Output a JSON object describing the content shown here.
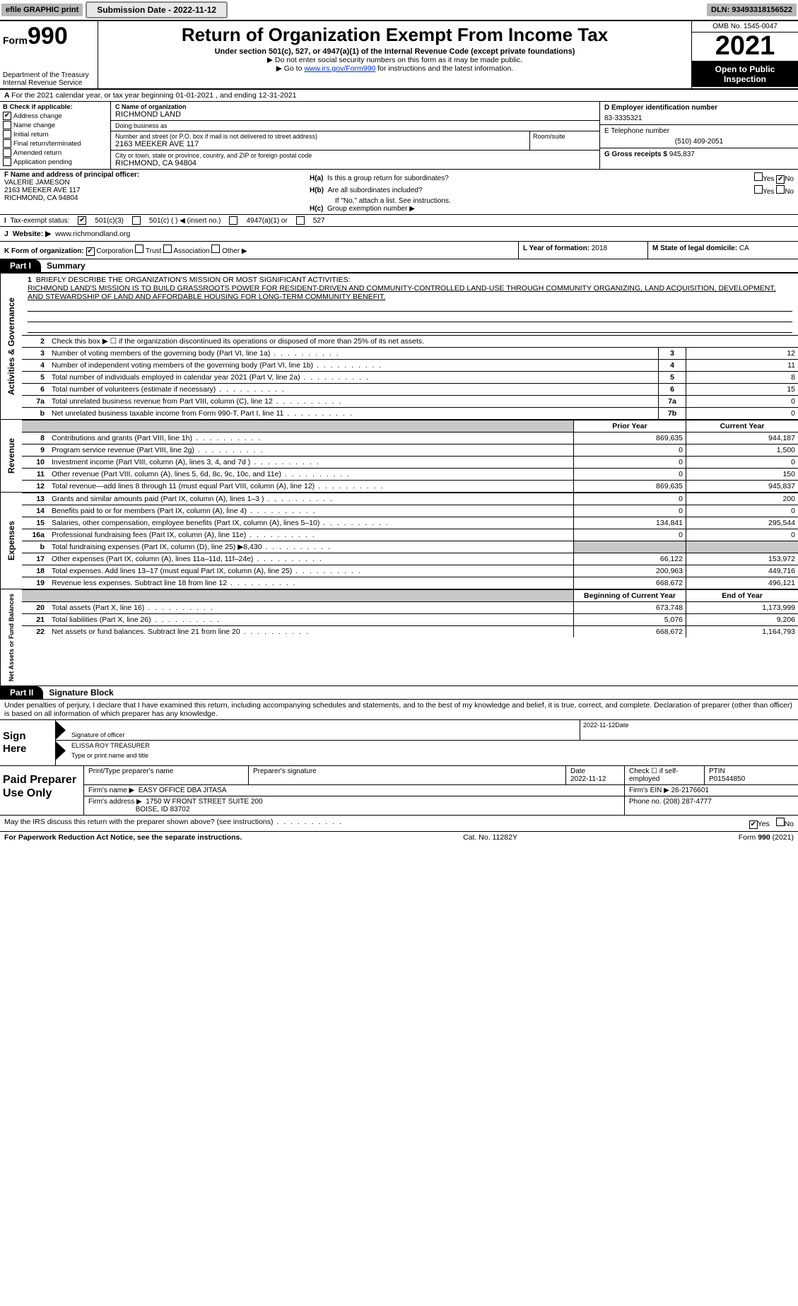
{
  "topbar": {
    "efile_label": "efile GRAPHIC print",
    "submission_label": "Submission Date - 2022-11-12",
    "dln": "DLN: 93493318156522"
  },
  "header": {
    "form_prefix": "Form",
    "form_number": "990",
    "title": "Return of Organization Exempt From Income Tax",
    "subtitle": "Under section 501(c), 527, or 4947(a)(1) of the Internal Revenue Code (except private foundations)",
    "note1": "▶ Do not enter social security numbers on this form as it may be made public.",
    "note2_pre": "▶ Go to ",
    "note2_link": "www.irs.gov/Form990",
    "note2_post": " for instructions and the latest information.",
    "dept": "Department of the Treasury",
    "irs": "Internal Revenue Service",
    "omb": "OMB No. 1545-0047",
    "year": "2021",
    "inspect": "Open to Public Inspection"
  },
  "A": {
    "text": "For the 2021 calendar year, or tax year beginning 01-01-2021     , and ending 12-31-2021"
  },
  "B": {
    "label": "B Check if applicable:",
    "items": [
      "Address change",
      "Name change",
      "Initial return",
      "Final return/terminated",
      "Amended return",
      "Application pending"
    ],
    "checked": [
      true,
      false,
      false,
      false,
      false,
      false
    ]
  },
  "C": {
    "name_label": "C Name of organization",
    "name": "RICHMOND LAND",
    "dba_label": "Doing business as",
    "dba": "",
    "street_label": "Number and street (or P.O. box if mail is not delivered to street address)",
    "street": "2163 MEEKER AVE 117",
    "room_label": "Room/suite",
    "city_label": "City or town, state or province, country, and ZIP or foreign postal code",
    "city": "RICHMOND, CA  94804"
  },
  "D": {
    "label": "D Employer identification number",
    "value": "83-3335321"
  },
  "E": {
    "label": "E Telephone number",
    "value": "(510) 409-2051"
  },
  "G": {
    "label": "G Gross receipts $",
    "value": "945,837"
  },
  "F": {
    "label": "F  Name and address of principal officer:",
    "name": "VALERIE JAMESON",
    "addr1": "2163 MEEKER AVE 117",
    "addr2": "RICHMOND, CA  94804"
  },
  "H": {
    "a": "Is this a group return for subordinates?",
    "b": "Are all subordinates included?",
    "note": "If \"No,\" attach a list. See instructions.",
    "c": "Group exemption number ▶",
    "yes": "Yes",
    "no": "No"
  },
  "I": {
    "label": "Tax-exempt status:",
    "opts": [
      "501(c)(3)",
      "501(c) (    ) ◀ (insert no.)",
      "4947(a)(1) or",
      "527"
    ]
  },
  "J": {
    "label": "Website: ▶",
    "value": "www.richmondland.org"
  },
  "K": {
    "label": "K Form of organization:",
    "opts": [
      "Corporation",
      "Trust",
      "Association",
      "Other ▶"
    ]
  },
  "L": {
    "label": "L Year of formation:",
    "value": "2018"
  },
  "M": {
    "label": "M State of legal domicile:",
    "value": "CA"
  },
  "partI": {
    "tab": "Part I",
    "title": "Summary"
  },
  "mission": {
    "num": "1",
    "label": "Briefly describe the organization's mission or most significant activities:",
    "text": "RICHMOND LAND'S MISSION IS TO BUILD GRASSROOTS POWER FOR RESIDENT-DRIVEN AND COMMUNITY-CONTROLLED LAND-USE THROUGH COMMUNITY ORGANIZING, LAND ACQUISITION, DEVELOPMENT, AND STEWARDSHIP OF LAND AND AFFORDABLE HOUSING FOR LONG-TERM COMMUNITY BENEFIT."
  },
  "gov_rows": [
    {
      "n": "2",
      "t": "Check this box ▶ ☐  if the organization discontinued its operations or disposed of more than 25% of its net assets.",
      "box": "",
      "v": ""
    },
    {
      "n": "3",
      "t": "Number of voting members of the governing body (Part VI, line 1a)",
      "box": "3",
      "v": "12"
    },
    {
      "n": "4",
      "t": "Number of independent voting members of the governing body (Part VI, line 1b)",
      "box": "4",
      "v": "11"
    },
    {
      "n": "5",
      "t": "Total number of individuals employed in calendar year 2021 (Part V, line 2a)",
      "box": "5",
      "v": "8"
    },
    {
      "n": "6",
      "t": "Total number of volunteers (estimate if necessary)",
      "box": "6",
      "v": "15"
    },
    {
      "n": "7a",
      "t": "Total unrelated business revenue from Part VIII, column (C), line 12",
      "box": "7a",
      "v": "0"
    },
    {
      "n": "b",
      "t": "Net unrelated business taxable income from Form 990-T, Part I, line 11",
      "box": "7b",
      "v": "0"
    }
  ],
  "colhdr": {
    "prior": "Prior Year",
    "current": "Current Year",
    "boy": "Beginning of Current Year",
    "eoy": "End of Year"
  },
  "rev_rows": [
    {
      "n": "8",
      "t": "Contributions and grants (Part VIII, line 1h)",
      "p": "869,635",
      "c": "944,187"
    },
    {
      "n": "9",
      "t": "Program service revenue (Part VIII, line 2g)",
      "p": "0",
      "c": "1,500"
    },
    {
      "n": "10",
      "t": "Investment income (Part VIII, column (A), lines 3, 4, and 7d )",
      "p": "0",
      "c": "0"
    },
    {
      "n": "11",
      "t": "Other revenue (Part VIII, column (A), lines 5, 6d, 8c, 9c, 10c, and 11e)",
      "p": "0",
      "c": "150"
    },
    {
      "n": "12",
      "t": "Total revenue—add lines 8 through 11 (must equal Part VIII, column (A), line 12)",
      "p": "869,635",
      "c": "945,837"
    }
  ],
  "exp_rows": [
    {
      "n": "13",
      "t": "Grants and similar amounts paid (Part IX, column (A), lines 1–3 )",
      "p": "0",
      "c": "200"
    },
    {
      "n": "14",
      "t": "Benefits paid to or for members (Part IX, column (A), line 4)",
      "p": "0",
      "c": "0"
    },
    {
      "n": "15",
      "t": "Salaries, other compensation, employee benefits (Part IX, column (A), lines 5–10)",
      "p": "134,841",
      "c": "295,544"
    },
    {
      "n": "16a",
      "t": "Professional fundraising fees (Part IX, column (A), line 11e)",
      "p": "0",
      "c": "0"
    },
    {
      "n": "b",
      "t": "Total fundraising expenses (Part IX, column (D), line 25) ▶8,430",
      "p": "shade",
      "c": "shade"
    },
    {
      "n": "17",
      "t": "Other expenses (Part IX, column (A), lines 11a–11d, 11f–24e)",
      "p": "66,122",
      "c": "153,972"
    },
    {
      "n": "18",
      "t": "Total expenses. Add lines 13–17 (must equal Part IX, column (A), line 25)",
      "p": "200,963",
      "c": "449,716"
    },
    {
      "n": "19",
      "t": "Revenue less expenses. Subtract line 18 from line 12",
      "p": "668,672",
      "c": "496,121"
    }
  ],
  "na_rows": [
    {
      "n": "20",
      "t": "Total assets (Part X, line 16)",
      "p": "673,748",
      "c": "1,173,999"
    },
    {
      "n": "21",
      "t": "Total liabilities (Part X, line 26)",
      "p": "5,076",
      "c": "9,206"
    },
    {
      "n": "22",
      "t": "Net assets or fund balances. Subtract line 21 from line 20",
      "p": "668,672",
      "c": "1,164,793"
    }
  ],
  "vtabs": {
    "gov": "Activities & Governance",
    "rev": "Revenue",
    "exp": "Expenses",
    "na": "Net Assets or Fund Balances"
  },
  "partII": {
    "tab": "Part II",
    "title": "Signature Block"
  },
  "sig": {
    "perjury": "Under penalties of perjury, I declare that I have examined this return, including accompanying schedules and statements, and to the best of my knowledge and belief, it is true, correct, and complete. Declaration of preparer (other than officer) is based on all information of which preparer has any knowledge.",
    "sign_here": "Sign Here",
    "sig_label": "Signature of officer",
    "date": "2022-11-12",
    "date_label": "Date",
    "name_title": "ELISSA ROY  TREASURER",
    "name_label": "Type or print name and title"
  },
  "prep": {
    "label": "Paid Preparer Use Only",
    "h_name": "Print/Type preparer's name",
    "h_sig": "Preparer's signature",
    "h_date": "Date",
    "date": "2022-11-12",
    "h_self": "Check ☐ if self-employed",
    "h_ptin": "PTIN",
    "ptin": "P01544850",
    "firm_name_l": "Firm's name    ▶",
    "firm_name": "EASY OFFICE DBA JITASA",
    "firm_ein_l": "Firm's EIN ▶",
    "firm_ein": "26-2176601",
    "firm_addr_l": "Firm's address ▶",
    "firm_addr1": "1750 W FRONT STREET SUITE 200",
    "firm_addr2": "BOISE, ID  83702",
    "phone_l": "Phone no.",
    "phone": "(208) 287-4777"
  },
  "discuss": {
    "text": "May the IRS discuss this return with the preparer shown above? (see instructions)",
    "yes": "Yes",
    "no": "No"
  },
  "footer": {
    "left": "For Paperwork Reduction Act Notice, see the separate instructions.",
    "mid": "Cat. No. 11282Y",
    "right_pre": "Form ",
    "right_b": "990",
    "right_post": " (2021)"
  }
}
